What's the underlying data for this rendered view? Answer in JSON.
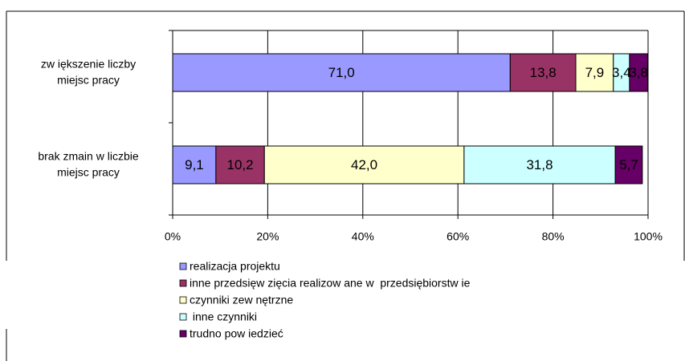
{
  "chart_data": {
    "type": "stacked_barh",
    "categories": [
      "zw iększenie liczby\nmiejsc pracy",
      "brak zmain w liczbie\nmiejsc pracy"
    ],
    "series": [
      {
        "name": "realizacja projektu",
        "color": "#9999ff",
        "values": [
          71.0,
          9.1
        ],
        "value_labels": [
          "71,0",
          "9,1"
        ]
      },
      {
        "name": "inne przedsięw zięcia realizow ane w  przedsiębiorstw ie",
        "color": "#993366",
        "values": [
          13.8,
          10.2
        ],
        "value_labels": [
          "13,8",
          "10,2"
        ]
      },
      {
        "name": "czynniki zew nętrzne",
        "color": "#ffffcc",
        "values": [
          7.9,
          42.0
        ],
        "value_labels": [
          "7,9",
          "42,0"
        ]
      },
      {
        "name": " inne czynniki",
        "color": "#ccffff",
        "values": [
          3.4,
          31.8
        ],
        "value_labels": [
          "3,4",
          "31,8"
        ]
      },
      {
        "name": "trudno pow iedzieć",
        "color": "#660066",
        "values": [
          3.8,
          5.7
        ],
        "value_labels": [
          "3,8",
          "5,7"
        ]
      }
    ],
    "xlim": [
      0,
      100
    ],
    "xticks": [
      {
        "value": 0,
        "label": "0%"
      },
      {
        "value": 20,
        "label": "20%"
      },
      {
        "value": 40,
        "label": "40%"
      },
      {
        "value": 60,
        "label": "60%"
      },
      {
        "value": 80,
        "label": "80%"
      },
      {
        "value": 100,
        "label": "100%"
      }
    ],
    "grid": true,
    "legend": "bottom-left"
  }
}
